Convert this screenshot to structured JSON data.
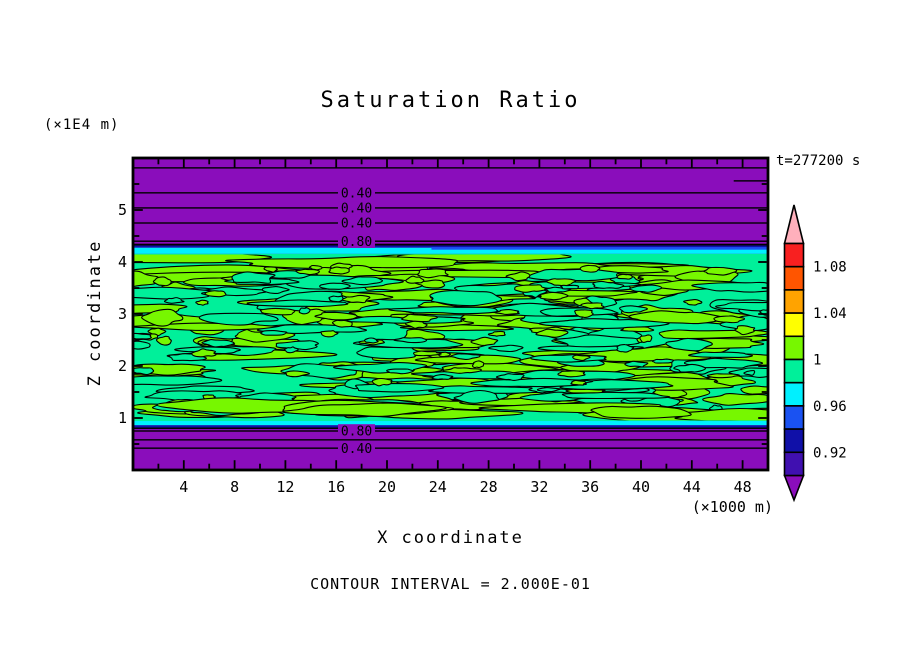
{
  "title": "Saturation Ratio",
  "annotations": {
    "z_unit": "(×1E4 m)",
    "x_unit": "(×1000 m)",
    "time": "t=277200 s",
    "contour_note": "CONTOUR INTERVAL = 2.000E-01"
  },
  "axes": {
    "x_label": "X coordinate",
    "z_label": "Z coordinate",
    "x_ticks": [
      4,
      8,
      12,
      16,
      20,
      24,
      28,
      32,
      36,
      40,
      44,
      48
    ],
    "z_ticks": [
      1,
      2,
      3,
      4,
      5
    ],
    "x_range": [
      0,
      50
    ],
    "z_range": [
      0,
      6
    ]
  },
  "palette": {
    "background": "#FFFFFF",
    "purple": "#8A0DBB",
    "indigo": "#4010B0",
    "navy": "#1010A8",
    "blue": "#1A52F2",
    "cyan": "#00F0FF",
    "spring_green": "#00F09A",
    "chartreuse": "#77F700",
    "yellow": "#FFFF00",
    "orange": "#FFA300",
    "orange_red": "#FF5500",
    "red": "#F82020",
    "pink": "#FFB0BC",
    "line": "#000000"
  },
  "colorbar": {
    "labels": [
      "1.08",
      "1.04",
      "1",
      "0.96",
      "0.92"
    ],
    "box_colors_top_to_bottom": [
      "#F82020",
      "#FF5500",
      "#FFA300",
      "#FFFF00",
      "#77F700",
      "#00F09A",
      "#00F0FF",
      "#1A52F2",
      "#1010A8",
      "#4010B0"
    ],
    "over_arrow_color": "#FFB0BC",
    "under_arrow_color": "#8A0DBB",
    "value_step_per_box": 0.02,
    "value_range": [
      0.9,
      1.1
    ]
  },
  "chart_data": {
    "type": "heatmap",
    "title": "Saturation Ratio",
    "xlabel": "X coordinate",
    "ylabel": "Z coordinate",
    "x_unit": "(×1000 m)",
    "z_unit": "(×1E4 m)",
    "x_range": [
      0,
      50
    ],
    "z_range": [
      0,
      6
    ],
    "x_ticks": [
      4,
      8,
      12,
      16,
      20,
      24,
      28,
      32,
      36,
      40,
      44,
      48
    ],
    "z_ticks": [
      1,
      2,
      3,
      4,
      5
    ],
    "time_label": "t=277200 s",
    "contour_interval": "2.000E-01",
    "colorbar_tick_labels": [
      "1.08",
      "1.04",
      "1",
      "0.96",
      "0.92"
    ],
    "bands": [
      {
        "z_from": 0.0,
        "z_to": 6.0,
        "value": "< 0.90",
        "color": "#8A0DBB"
      },
      {
        "z_from": 4.317,
        "z_to": 4.352,
        "value": "contour edge",
        "color": "#000000"
      },
      {
        "z_from": 4.275,
        "z_to": 4.317,
        "value": "0.92-0.94",
        "color": "#1010A8"
      },
      {
        "z_from": 4.157,
        "z_to": 4.275,
        "value": "0.96-0.98",
        "color": "#00F0FF"
      },
      {
        "z_from": 4.237,
        "z_to": 4.287,
        "value": "0.94-0.96",
        "color": "#1A52F2",
        "x_from": 23.5,
        "x_to": 50
      },
      {
        "z_from": 0.942,
        "z_to": 4.157,
        "value": "0.98-1.02 turbulent layer",
        "color": "#00F09A",
        "texture": "mottled",
        "texture_color": "#77F700"
      },
      {
        "z_from": 0.86,
        "z_to": 0.942,
        "value": "0.96-0.98",
        "color": "#00F0FF"
      },
      {
        "z_from": 0.817,
        "z_to": 0.86,
        "value": "0.92-0.94",
        "color": "#1010A8"
      },
      {
        "z_from": 0.788,
        "z_to": 0.817,
        "value": "contour edge",
        "color": "#000000"
      }
    ],
    "contour_lines_top": [
      {
        "z": 5.81,
        "label": ""
      },
      {
        "z": 5.56,
        "label": "",
        "x_from": 47.3,
        "x_to": 50
      },
      {
        "z": 5.33,
        "label": "0.40"
      },
      {
        "z": 5.04,
        "label": "0.40"
      },
      {
        "z": 4.75,
        "label": "0.40"
      },
      {
        "z": 4.4,
        "label": "0.80"
      }
    ],
    "contour_lines_bottom": [
      {
        "z": 0.75,
        "label": "0.80"
      },
      {
        "z": 0.58,
        "label": ""
      },
      {
        "z": 0.42,
        "label": "0.40"
      }
    ]
  }
}
